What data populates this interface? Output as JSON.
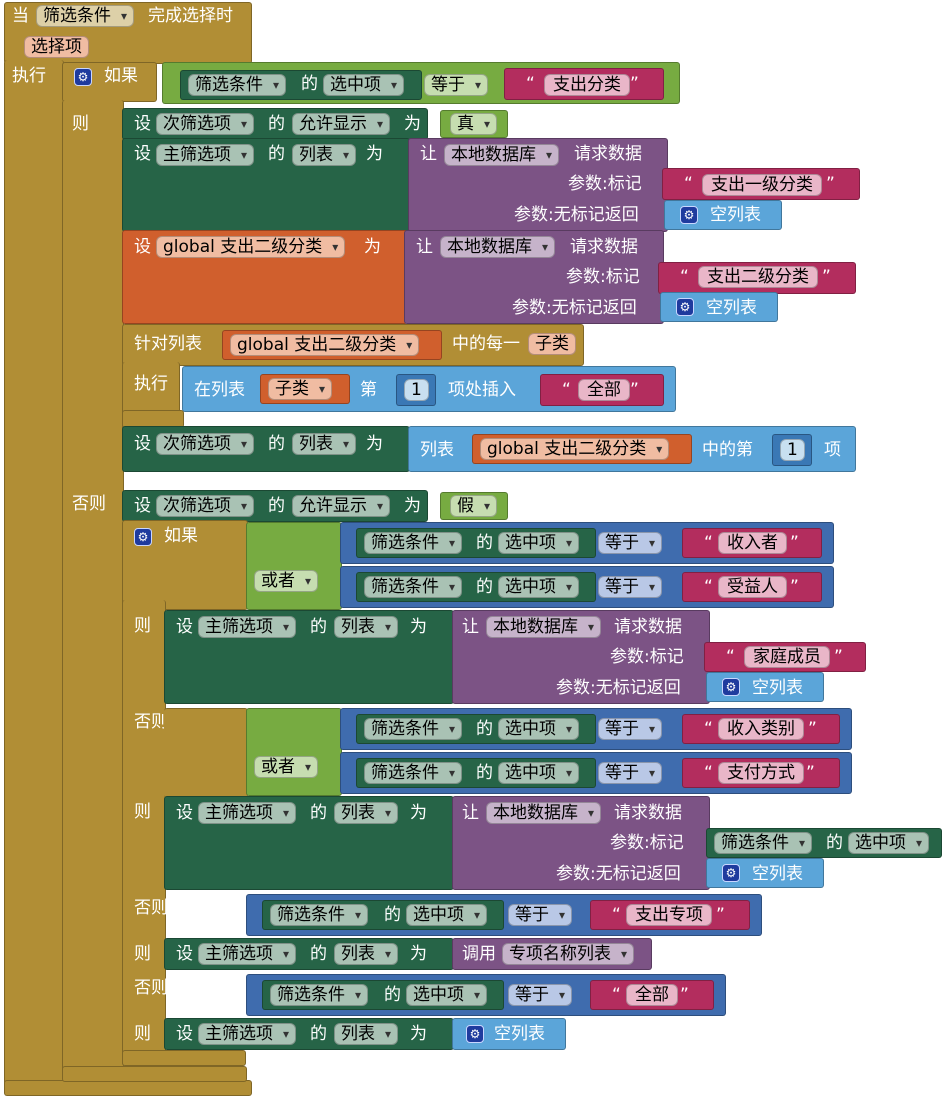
{
  "event": {
    "when": "当",
    "component": "筛选条件",
    "event_name": "完成选择时",
    "param": "选择项"
  },
  "kw": {
    "do": "执行",
    "if": "如果",
    "then": "则",
    "else": "否则",
    "else_if": "否则，如果",
    "set": "设",
    "of": "的",
    "to": "为",
    "or": "或者",
    "call": "让",
    "request": "请求数据",
    "tag": "参数:标记",
    "nomatch": "参数:无标记返回",
    "empty_list": "空列表",
    "for_each": "针对列表",
    "each_item": "中的每一",
    "do2": "执行",
    "insert_in": "在列表",
    "insert_at": "第",
    "insert_suffix": "项处插入",
    "list_label": "列表",
    "index_of": "中的第",
    "item": "项",
    "call2": "调用"
  },
  "components": {
    "filter": "筛选条件",
    "selected": "选中项",
    "equals": "等于",
    "sub": "次筛选项",
    "main": "主筛选项",
    "visible": "允许显示",
    "elements": "列表",
    "db": "本地数据库",
    "global_var": "global 支出二级分类",
    "loop_var": "子类",
    "true": "真",
    "false": "假",
    "proc_name": "专项名称列表"
  },
  "strings": {
    "s1": "支出分类",
    "s2": "支出一级分类",
    "s3": "支出二级分类",
    "s4": "全部",
    "s5": "收入者",
    "s6": "受益人",
    "s7": "家庭成员",
    "s8": "收入类别",
    "s9": "支付方式",
    "s10": "支出专项",
    "s11": "全部"
  },
  "numbers": {
    "n1": "1",
    "n2": "1"
  },
  "colors": {
    "event": "#b18e35",
    "set": "#266447",
    "global": "#d05f2d",
    "procedure": "#7c5385",
    "compare": "#77ab41",
    "text": "#b32d5e",
    "list": "#5ba5d9"
  },
  "icons": {
    "mutator": "gear-icon",
    "dropdown": "chevron-down-icon"
  }
}
